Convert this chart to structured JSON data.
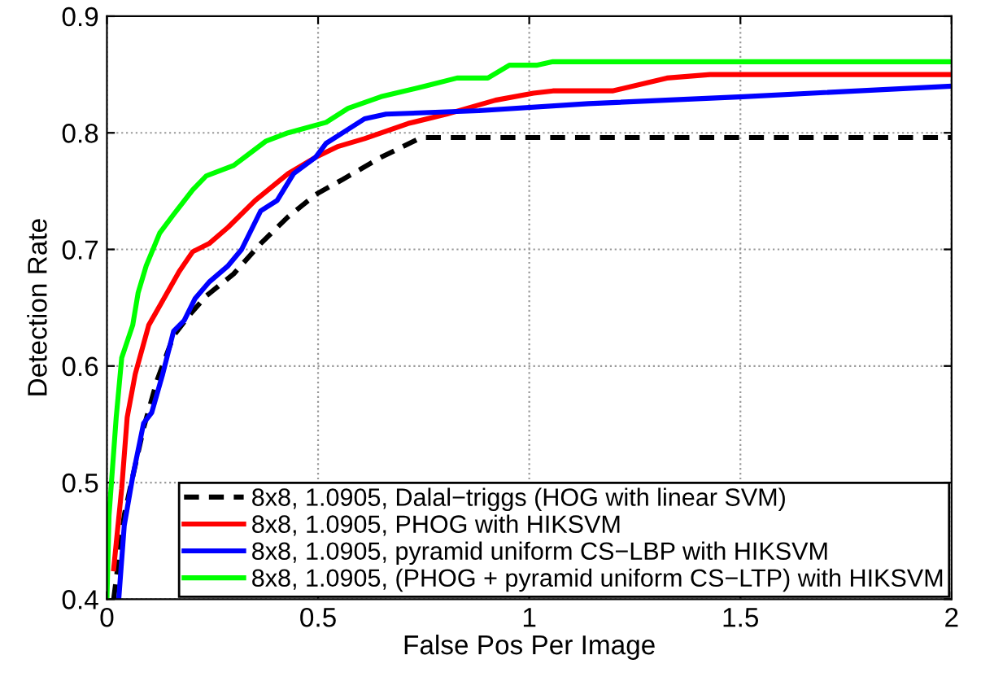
{
  "chart_data": {
    "type": "line",
    "xlabel": "False Pos Per Image",
    "ylabel": "Detection Rate",
    "xlim": [
      0,
      2
    ],
    "ylim": [
      0.4,
      0.9
    ],
    "xticks": [
      0,
      0.5,
      1,
      1.5,
      2
    ],
    "yticks": [
      0.4,
      0.5,
      0.6,
      0.7,
      0.8,
      0.9
    ],
    "grid": true,
    "legend": "bottom right",
    "marker": "none",
    "series": [
      {
        "name": "8x8, 1.0905, Dalal−triggs (HOG with linear SVM)",
        "color": "#000000",
        "line_style": "dashed",
        "x": [
          0.016,
          0.041,
          0.061,
          0.087,
          0.119,
          0.158,
          0.196,
          0.235,
          0.3,
          0.364,
          0.429,
          0.494,
          0.558,
          0.649,
          0.739,
          0.752,
          2
        ],
        "values": [
          0.4,
          0.472,
          0.505,
          0.547,
          0.588,
          0.626,
          0.644,
          0.66,
          0.679,
          0.705,
          0.728,
          0.747,
          0.76,
          0.779,
          0.795,
          0.796,
          0.796
        ]
      },
      {
        "name": "8x8, 1.0905, PHOG with HIKSVM",
        "color": "#ff0000",
        "line_style": "solid",
        "x": [
          0.016,
          0.035,
          0.048,
          0.067,
          0.099,
          0.132,
          0.171,
          0.203,
          0.242,
          0.287,
          0.351,
          0.429,
          0.494,
          0.545,
          0.61,
          0.713,
          0.804,
          0.92,
          1.01,
          1.056,
          1.197,
          1.326,
          1.428,
          2
        ],
        "values": [
          0.426,
          0.495,
          0.556,
          0.593,
          0.635,
          0.656,
          0.681,
          0.698,
          0.705,
          0.719,
          0.742,
          0.765,
          0.779,
          0.788,
          0.795,
          0.808,
          0.816,
          0.828,
          0.834,
          0.836,
          0.836,
          0.847,
          0.85,
          0.85
        ]
      },
      {
        "name": "8x8, 1.0905, pyramid uniform CS−LBP with HIKSVM",
        "color": "#0000ff",
        "line_style": "solid",
        "x": [
          0.028,
          0.041,
          0.061,
          0.087,
          0.106,
          0.132,
          0.158,
          0.183,
          0.209,
          0.242,
          0.287,
          0.319,
          0.364,
          0.403,
          0.442,
          0.494,
          0.519,
          0.558,
          0.61,
          0.661,
          0.881,
          1.14,
          1.506,
          2
        ],
        "values": [
          0.4,
          0.463,
          0.505,
          0.551,
          0.56,
          0.593,
          0.63,
          0.639,
          0.658,
          0.672,
          0.686,
          0.7,
          0.733,
          0.742,
          0.765,
          0.779,
          0.791,
          0.8,
          0.812,
          0.816,
          0.819,
          0.825,
          0.831,
          0.84
        ]
      },
      {
        "name": "8x8, 1.0905, (PHOG + pyramid uniform CS−LTP) with HIKSVM",
        "color": "#00ff00",
        "line_style": "solid",
        "x": [
          0.0,
          0.005,
          0.022,
          0.035,
          0.061,
          0.074,
          0.093,
          0.125,
          0.158,
          0.203,
          0.235,
          0.3,
          0.326,
          0.377,
          0.429,
          0.519,
          0.571,
          0.649,
          0.752,
          0.829,
          0.902,
          0.953,
          1.017,
          1.056,
          2
        ],
        "values": [
          0.4,
          0.472,
          0.556,
          0.607,
          0.635,
          0.663,
          0.686,
          0.714,
          0.73,
          0.751,
          0.763,
          0.772,
          0.779,
          0.793,
          0.8,
          0.809,
          0.821,
          0.831,
          0.84,
          0.847,
          0.847,
          0.858,
          0.858,
          0.861,
          0.861
        ]
      }
    ]
  }
}
